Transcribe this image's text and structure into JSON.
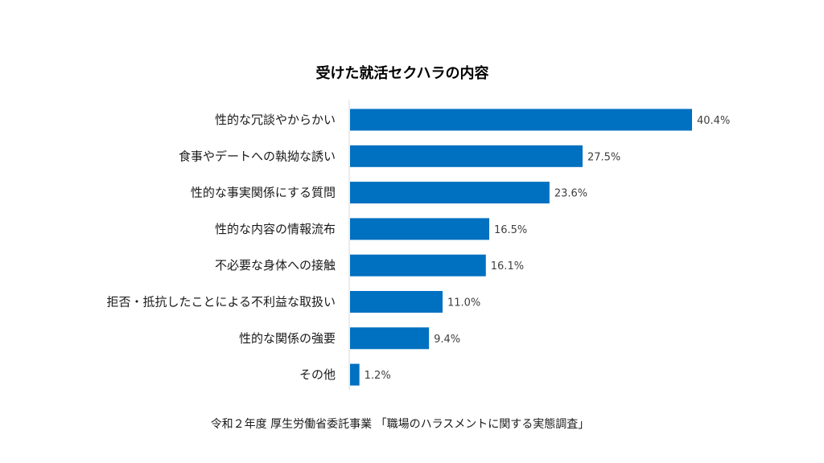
{
  "chart_data": {
    "type": "bar",
    "orientation": "horizontal",
    "title": "受けた就活セクハラの内容",
    "categories": [
      "性的な冗談やからかい",
      "食事やデートへの執拗な誘い",
      "性的な事実関係にする質問",
      "性的な内容の情報流布",
      "不必要な身体への接触",
      "拒否・抵抗したことによる不利益な取扱い",
      "性的な関係の強要",
      "その他"
    ],
    "values": [
      40.4,
      27.5,
      23.6,
      16.5,
      16.1,
      11.0,
      9.4,
      1.2
    ],
    "value_labels": [
      "40.4%",
      "27.5%",
      "23.6%",
      "16.5%",
      "16.1%",
      "11.0%",
      "9.4%",
      "1.2%"
    ],
    "unit": "%",
    "xlim": [
      0,
      40.4
    ],
    "xlabel": "",
    "ylabel": "",
    "grid": false,
    "bar_color": "#0070c0",
    "axis_color": "#d9d9d9"
  },
  "footer": {
    "source": "令和２年度 厚生労働省委託事業 「職場のハラスメントに関する実態調査」"
  }
}
